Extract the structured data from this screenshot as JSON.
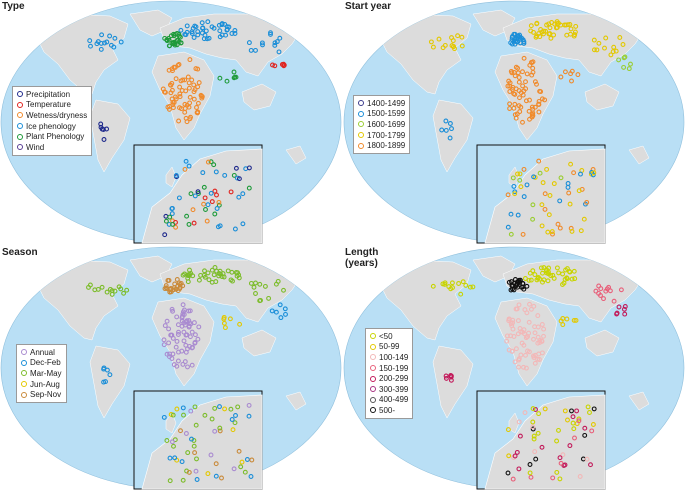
{
  "figure": {
    "colors": {
      "ocean": "#b9dff5",
      "land": "#dcdcdc",
      "inset_ocean": "#b9dff5"
    },
    "panels": [
      {
        "id": "type",
        "title": "Type",
        "subtitle": "",
        "legend": [
          {
            "label": "Precipitation",
            "color": "#1f2a8c"
          },
          {
            "label": "Temperature",
            "color": "#e0241f"
          },
          {
            "label": "Wetness/dryness",
            "color": "#f08a2b"
          },
          {
            "label": "Ice phenology",
            "color": "#1a8ed8"
          },
          {
            "label": "Plant Phenology",
            "color": "#1e9a3a"
          },
          {
            "label": "Wind",
            "color": "#5a3f96"
          }
        ],
        "stations": [
          {
            "region": "africa",
            "color": "#f08a2b"
          },
          {
            "region": "eur-north",
            "color": "#1a8ed8"
          },
          {
            "region": "eur-west",
            "color": "#1e9a3a"
          },
          {
            "region": "namerica",
            "color": "#1a8ed8"
          },
          {
            "region": "asia",
            "color": "#1a8ed8"
          },
          {
            "region": "samerica",
            "color": "#1f2a8c"
          },
          {
            "region": "east-asia",
            "color": "#e0241f"
          },
          {
            "region": "mideast",
            "color": "#1e9a3a"
          }
        ]
      },
      {
        "id": "start",
        "title": "Start year",
        "subtitle": "",
        "legend": [
          {
            "label": "1400-1499",
            "color": "#3b3b8c"
          },
          {
            "label": "1500-1599",
            "color": "#1a8ed8"
          },
          {
            "label": "1600-1699",
            "color": "#9acd32"
          },
          {
            "label": "1700-1799",
            "color": "#e3c800"
          },
          {
            "label": "1800-1899",
            "color": "#f08a2b"
          }
        ],
        "stations": [
          {
            "region": "africa",
            "color": "#f08a2b"
          },
          {
            "region": "eur-north",
            "color": "#e3c800"
          },
          {
            "region": "eur-west",
            "color": "#1a8ed8"
          },
          {
            "region": "namerica",
            "color": "#e3c800"
          },
          {
            "region": "asia",
            "color": "#e3c800"
          },
          {
            "region": "samerica",
            "color": "#1a8ed8"
          },
          {
            "region": "east-asia",
            "color": "#9acd32"
          },
          {
            "region": "mideast",
            "color": "#f08a2b"
          }
        ]
      },
      {
        "id": "season",
        "title": "Season",
        "subtitle": "",
        "legend": [
          {
            "label": "Annual",
            "color": "#a98bd0"
          },
          {
            "label": "Dec-Feb",
            "color": "#1a8ed8"
          },
          {
            "label": "Mar-May",
            "color": "#7cbc2a"
          },
          {
            "label": "Jun-Aug",
            "color": "#e3c800"
          },
          {
            "label": "Sep-Nov",
            "color": "#c98a3a"
          }
        ],
        "stations": [
          {
            "region": "africa",
            "color": "#a98bd0"
          },
          {
            "region": "eur-north",
            "color": "#7cbc2a"
          },
          {
            "region": "eur-west",
            "color": "#c98a3a"
          },
          {
            "region": "namerica",
            "color": "#7cbc2a"
          },
          {
            "region": "asia",
            "color": "#7cbc2a"
          },
          {
            "region": "samerica",
            "color": "#1a8ed8"
          },
          {
            "region": "east-asia",
            "color": "#1a8ed8"
          },
          {
            "region": "mideast",
            "color": "#e3c800"
          }
        ]
      },
      {
        "id": "length",
        "title": "Length",
        "subtitle": "(years)",
        "legend": [
          {
            "label": "<50",
            "color": "#c8d400"
          },
          {
            "label": "50-99",
            "color": "#e3c800"
          },
          {
            "label": "100-149",
            "color": "#f2b8b8"
          },
          {
            "label": "150-199",
            "color": "#e8607a"
          },
          {
            "label": "200-299",
            "color": "#c21a5a"
          },
          {
            "label": "300-399",
            "color": "#a83280"
          },
          {
            "label": "400-499",
            "color": "#555555"
          },
          {
            "label": "500-",
            "color": "#111111"
          }
        ],
        "stations": [
          {
            "region": "africa",
            "color": "#f2b8b8"
          },
          {
            "region": "eur-north",
            "color": "#c8d400"
          },
          {
            "region": "eur-west",
            "color": "#111111"
          },
          {
            "region": "namerica",
            "color": "#c8d400"
          },
          {
            "region": "asia",
            "color": "#e8607a"
          },
          {
            "region": "samerica",
            "color": "#c21a5a"
          },
          {
            "region": "east-asia",
            "color": "#c21a5a"
          },
          {
            "region": "mideast",
            "color": "#e3c800"
          }
        ]
      }
    ]
  }
}
